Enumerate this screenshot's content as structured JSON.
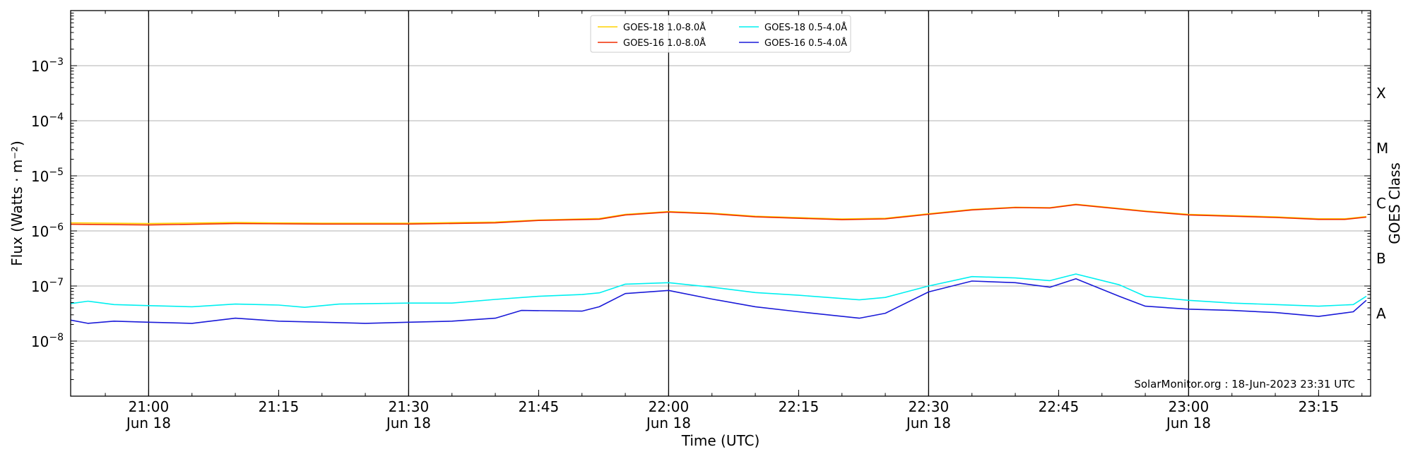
{
  "chart_data": {
    "type": "line",
    "xlabel": "Time (UTC)",
    "ylabel": "Flux (Watts · m⁻²)",
    "ylabel_right": "GOES Class",
    "y_scale": "log",
    "ylim": [
      1e-09,
      0.01
    ],
    "xlim": [
      "2023-06-18T20:51:00Z",
      "2023-06-18T23:21:00Z"
    ],
    "y_ticks": [
      {
        "value": 1e-08,
        "base": "10",
        "exp": "−8"
      },
      {
        "value": 1e-07,
        "base": "10",
        "exp": "−7"
      },
      {
        "value": 1e-06,
        "base": "10",
        "exp": "−6"
      },
      {
        "value": 1e-05,
        "base": "10",
        "exp": "−5"
      },
      {
        "value": 0.0001,
        "base": "10",
        "exp": "−4"
      },
      {
        "value": 0.001,
        "base": "10",
        "exp": "−3"
      }
    ],
    "x_ticks": [
      {
        "time": "2023-06-18T21:00:00Z",
        "label": "21:00",
        "date": "Jun 18"
      },
      {
        "time": "2023-06-18T21:15:00Z",
        "label": "21:15",
        "date": ""
      },
      {
        "time": "2023-06-18T21:30:00Z",
        "label": "21:30",
        "date": "Jun 18"
      },
      {
        "time": "2023-06-18T21:45:00Z",
        "label": "21:45",
        "date": ""
      },
      {
        "time": "2023-06-18T22:00:00Z",
        "label": "22:00",
        "date": "Jun 18"
      },
      {
        "time": "2023-06-18T22:15:00Z",
        "label": "22:15",
        "date": ""
      },
      {
        "time": "2023-06-18T22:30:00Z",
        "label": "22:30",
        "date": "Jun 18"
      },
      {
        "time": "2023-06-18T22:45:00Z",
        "label": "22:45",
        "date": ""
      },
      {
        "time": "2023-06-18T23:00:00Z",
        "label": "23:00",
        "date": "Jun 18"
      },
      {
        "time": "2023-06-18T23:15:00Z",
        "label": "23:15",
        "date": ""
      }
    ],
    "vertical_lines": [
      "2023-06-18T21:00:00Z",
      "2023-06-18T21:30:00Z",
      "2023-06-18T22:00:00Z",
      "2023-06-18T22:30:00Z",
      "2023-06-18T23:00:00Z"
    ],
    "goes_classes": [
      {
        "label": "A",
        "value": 1e-08
      },
      {
        "label": "B",
        "value": 1e-07
      },
      {
        "label": "C",
        "value": 1e-06
      },
      {
        "label": "M",
        "value": 1e-05
      },
      {
        "label": "X",
        "value": 0.0001
      }
    ],
    "grid": "horizontal at major y ticks; vertical lines every 30 minutes",
    "legend_position": "top-center",
    "series": [
      {
        "name": "GOES-18 1.0-8.0Å",
        "color": "#ffd200",
        "points": [
          [
            "2023-06-18T20:51:00Z",
            1.4e-06
          ],
          [
            "2023-06-18T21:00:00Z",
            1.36e-06
          ],
          [
            "2023-06-18T21:10:00Z",
            1.42e-06
          ],
          [
            "2023-06-18T21:20:00Z",
            1.38e-06
          ],
          [
            "2023-06-18T21:30:00Z",
            1.38e-06
          ],
          [
            "2023-06-18T21:40:00Z",
            1.45e-06
          ],
          [
            "2023-06-18T21:45:00Z",
            1.58e-06
          ],
          [
            "2023-06-18T21:52:00Z",
            1.68e-06
          ],
          [
            "2023-06-18T21:55:00Z",
            2e-06
          ],
          [
            "2023-06-18T22:00:00Z",
            2.25e-06
          ],
          [
            "2023-06-18T22:05:00Z",
            2.1e-06
          ],
          [
            "2023-06-18T22:10:00Z",
            1.85e-06
          ],
          [
            "2023-06-18T22:20:00Z",
            1.65e-06
          ],
          [
            "2023-06-18T22:25:00Z",
            1.7e-06
          ],
          [
            "2023-06-18T22:30:00Z",
            2.05e-06
          ],
          [
            "2023-06-18T22:35:00Z",
            2.45e-06
          ],
          [
            "2023-06-18T22:40:00Z",
            2.7e-06
          ],
          [
            "2023-06-18T22:44:00Z",
            2.65e-06
          ],
          [
            "2023-06-18T22:47:00Z",
            3.05e-06
          ],
          [
            "2023-06-18T22:55:00Z",
            2.3e-06
          ],
          [
            "2023-06-18T23:00:00Z",
            2e-06
          ],
          [
            "2023-06-18T23:10:00Z",
            1.8e-06
          ],
          [
            "2023-06-18T23:15:00Z",
            1.66e-06
          ],
          [
            "2023-06-18T23:18:00Z",
            1.66e-06
          ],
          [
            "2023-06-18T23:20:30Z",
            1.82e-06
          ]
        ]
      },
      {
        "name": "GOES-16 1.0-8.0Å",
        "color": "#f02c00",
        "points": [
          [
            "2023-06-18T20:51:00Z",
            1.32e-06
          ],
          [
            "2023-06-18T21:00:00Z",
            1.28e-06
          ],
          [
            "2023-06-18T21:10:00Z",
            1.36e-06
          ],
          [
            "2023-06-18T21:20:00Z",
            1.33e-06
          ],
          [
            "2023-06-18T21:30:00Z",
            1.33e-06
          ],
          [
            "2023-06-18T21:40:00Z",
            1.4e-06
          ],
          [
            "2023-06-18T21:45:00Z",
            1.55e-06
          ],
          [
            "2023-06-18T21:52:00Z",
            1.63e-06
          ],
          [
            "2023-06-18T21:55:00Z",
            1.95e-06
          ],
          [
            "2023-06-18T22:00:00Z",
            2.2e-06
          ],
          [
            "2023-06-18T22:05:00Z",
            2.05e-06
          ],
          [
            "2023-06-18T22:10:00Z",
            1.8e-06
          ],
          [
            "2023-06-18T22:20:00Z",
            1.6e-06
          ],
          [
            "2023-06-18T22:25:00Z",
            1.65e-06
          ],
          [
            "2023-06-18T22:30:00Z",
            2e-06
          ],
          [
            "2023-06-18T22:35:00Z",
            2.4e-06
          ],
          [
            "2023-06-18T22:40:00Z",
            2.65e-06
          ],
          [
            "2023-06-18T22:44:00Z",
            2.6e-06
          ],
          [
            "2023-06-18T22:47:00Z",
            3e-06
          ],
          [
            "2023-06-18T22:55:00Z",
            2.25e-06
          ],
          [
            "2023-06-18T23:00:00Z",
            1.95e-06
          ],
          [
            "2023-06-18T23:10:00Z",
            1.75e-06
          ],
          [
            "2023-06-18T23:15:00Z",
            1.62e-06
          ],
          [
            "2023-06-18T23:18:00Z",
            1.62e-06
          ],
          [
            "2023-06-18T23:20:30Z",
            1.78e-06
          ]
        ]
      },
      {
        "name": "GOES-18 0.5-4.0Å",
        "color": "#00f0f0",
        "points": [
          [
            "2023-06-18T20:51:00Z",
            4.8e-08
          ],
          [
            "2023-06-18T20:53:00Z",
            5.3e-08
          ],
          [
            "2023-06-18T20:56:00Z",
            4.6e-08
          ],
          [
            "2023-06-18T21:00:00Z",
            4.4e-08
          ],
          [
            "2023-06-18T21:05:00Z",
            4.2e-08
          ],
          [
            "2023-06-18T21:10:00Z",
            4.7e-08
          ],
          [
            "2023-06-18T21:15:00Z",
            4.5e-08
          ],
          [
            "2023-06-18T21:18:00Z",
            4.1e-08
          ],
          [
            "2023-06-18T21:22:00Z",
            4.7e-08
          ],
          [
            "2023-06-18T21:30:00Z",
            4.9e-08
          ],
          [
            "2023-06-18T21:35:00Z",
            4.9e-08
          ],
          [
            "2023-06-18T21:40:00Z",
            5.7e-08
          ],
          [
            "2023-06-18T21:45:00Z",
            6.5e-08
          ],
          [
            "2023-06-18T21:50:00Z",
            7e-08
          ],
          [
            "2023-06-18T21:52:00Z",
            7.5e-08
          ],
          [
            "2023-06-18T21:55:00Z",
            1.08e-07
          ],
          [
            "2023-06-18T22:00:00Z",
            1.15e-07
          ],
          [
            "2023-06-18T22:05:00Z",
            9.5e-08
          ],
          [
            "2023-06-18T22:10:00Z",
            7.6e-08
          ],
          [
            "2023-06-18T22:15:00Z",
            6.8e-08
          ],
          [
            "2023-06-18T22:22:00Z",
            5.6e-08
          ],
          [
            "2023-06-18T22:25:00Z",
            6.2e-08
          ],
          [
            "2023-06-18T22:30:00Z",
            1e-07
          ],
          [
            "2023-06-18T22:35:00Z",
            1.48e-07
          ],
          [
            "2023-06-18T22:40:00Z",
            1.4e-07
          ],
          [
            "2023-06-18T22:44:00Z",
            1.25e-07
          ],
          [
            "2023-06-18T22:47:00Z",
            1.65e-07
          ],
          [
            "2023-06-18T22:52:00Z",
            1.05e-07
          ],
          [
            "2023-06-18T22:55:00Z",
            6.5e-08
          ],
          [
            "2023-06-18T23:00:00Z",
            5.5e-08
          ],
          [
            "2023-06-18T23:05:00Z",
            4.9e-08
          ],
          [
            "2023-06-18T23:10:00Z",
            4.6e-08
          ],
          [
            "2023-06-18T23:15:00Z",
            4.3e-08
          ],
          [
            "2023-06-18T23:19:00Z",
            4.6e-08
          ],
          [
            "2023-06-18T23:20:30Z",
            6.5e-08
          ]
        ]
      },
      {
        "name": "GOES-16 0.5-4.0Å",
        "color": "#1a1ad8",
        "points": [
          [
            "2023-06-18T20:51:00Z",
            2.4e-08
          ],
          [
            "2023-06-18T20:53:00Z",
            2.1e-08
          ],
          [
            "2023-06-18T20:56:00Z",
            2.3e-08
          ],
          [
            "2023-06-18T21:00:00Z",
            2.2e-08
          ],
          [
            "2023-06-18T21:05:00Z",
            2.1e-08
          ],
          [
            "2023-06-18T21:10:00Z",
            2.6e-08
          ],
          [
            "2023-06-18T21:15:00Z",
            2.3e-08
          ],
          [
            "2023-06-18T21:20:00Z",
            2.2e-08
          ],
          [
            "2023-06-18T21:25:00Z",
            2.1e-08
          ],
          [
            "2023-06-18T21:30:00Z",
            2.2e-08
          ],
          [
            "2023-06-18T21:35:00Z",
            2.3e-08
          ],
          [
            "2023-06-18T21:40:00Z",
            2.6e-08
          ],
          [
            "2023-06-18T21:43:00Z",
            3.6e-08
          ],
          [
            "2023-06-18T21:50:00Z",
            3.5e-08
          ],
          [
            "2023-06-18T21:52:00Z",
            4.2e-08
          ],
          [
            "2023-06-18T21:55:00Z",
            7.3e-08
          ],
          [
            "2023-06-18T22:00:00Z",
            8.3e-08
          ],
          [
            "2023-06-18T22:05:00Z",
            5.8e-08
          ],
          [
            "2023-06-18T22:10:00Z",
            4.2e-08
          ],
          [
            "2023-06-18T22:15:00Z",
            3.4e-08
          ],
          [
            "2023-06-18T22:22:00Z",
            2.6e-08
          ],
          [
            "2023-06-18T22:25:00Z",
            3.2e-08
          ],
          [
            "2023-06-18T22:30:00Z",
            7.8e-08
          ],
          [
            "2023-06-18T22:35:00Z",
            1.23e-07
          ],
          [
            "2023-06-18T22:40:00Z",
            1.15e-07
          ],
          [
            "2023-06-18T22:44:00Z",
            9.5e-08
          ],
          [
            "2023-06-18T22:47:00Z",
            1.35e-07
          ],
          [
            "2023-06-18T22:52:00Z",
            6.5e-08
          ],
          [
            "2023-06-18T22:55:00Z",
            4.3e-08
          ],
          [
            "2023-06-18T23:00:00Z",
            3.8e-08
          ],
          [
            "2023-06-18T23:05:00Z",
            3.6e-08
          ],
          [
            "2023-06-18T23:10:00Z",
            3.3e-08
          ],
          [
            "2023-06-18T23:15:00Z",
            2.8e-08
          ],
          [
            "2023-06-18T23:19:00Z",
            3.4e-08
          ],
          [
            "2023-06-18T23:20:30Z",
            5.5e-08
          ]
        ]
      }
    ],
    "annotation": "SolarMonitor.org : 18-Jun-2023 23:31 UTC"
  }
}
